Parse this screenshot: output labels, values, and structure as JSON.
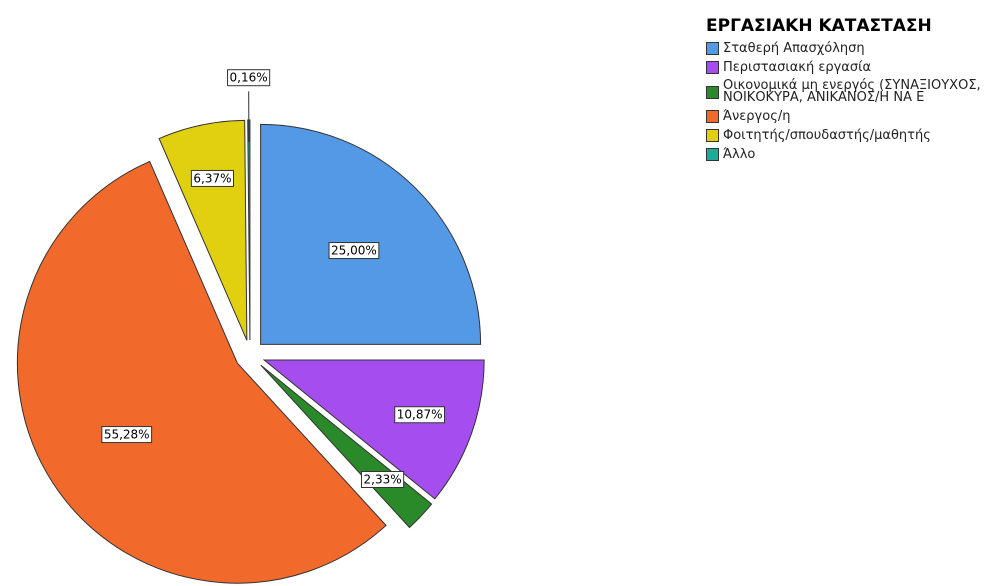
{
  "chart_data": {
    "type": "pie",
    "legend_title": "ΕΡΓΑΣΙΑΚΗ ΚΑΤΑΣΤΑΣΗ",
    "categories": [
      "Σταθερή Απασχόληση",
      "Περιστασιακή εργασία",
      "Οικονομικά μη ενεργός (ΣΥΝΑΞΙΟΥΧΟΣ, ΝΟΙΚΟΚΥΡΑ, ΑΝΙΚΑΝΟΣ/Η ΝΑ Ε",
      "Άνεργος/η",
      "Φοιτητής/σπουδαστής/μαθητής",
      "Άλλο"
    ],
    "values": [
      25.0,
      10.87,
      2.33,
      55.28,
      6.37,
      0.16
    ],
    "value_labels": [
      "25,00%",
      "10,87%",
      "2,33%",
      "55,28%",
      "6,37%",
      "0,16%"
    ],
    "colors": [
      "#5499e6",
      "#a64df0",
      "#2a8a2a",
      "#f26a2b",
      "#e0d010",
      "#1faa98"
    ],
    "legend": "right"
  }
}
